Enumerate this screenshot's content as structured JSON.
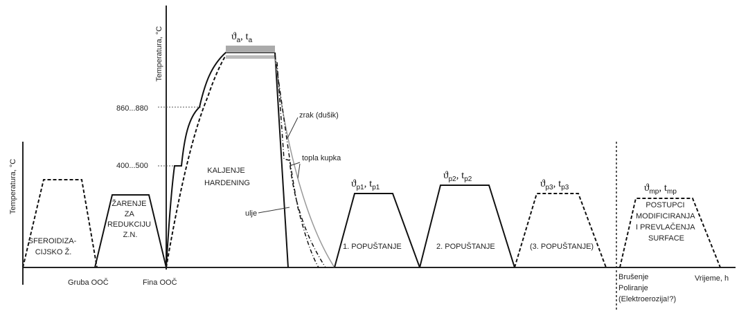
{
  "axes": {
    "left_y_label": "Temperatura, °C",
    "main_y_label": "Temperatura, °C",
    "x_label": "Vrijeme, h"
  },
  "ticks": {
    "t1": "860...880",
    "t2": "400...500"
  },
  "processes": {
    "sferoidizacija": [
      "SFEROIDIZA-",
      "CIJSKO Ž."
    ],
    "zarenje": [
      "ŽARENJE",
      "ZA",
      "REDUKCIJU",
      "Z.N."
    ],
    "kaljenje": [
      "KALJENJE",
      "HARDENING"
    ],
    "popustanje1": "1. POPUŠTANJE",
    "popustanje2": "2. POPUŠTANJE",
    "popustanje3": "(3. POPUŠTANJE)",
    "postupci": [
      "POSTUPCI",
      "MODIFICIRANJA",
      "I PREVLAČENJA",
      "SURFACE"
    ]
  },
  "params": {
    "austenit": {
      "sym": "ϑ",
      "sub": "a",
      "sym2": "t",
      "sub2": "a"
    },
    "p1": {
      "sym": "ϑ",
      "sub": "p1",
      "sym2": "t",
      "sub2": "p1"
    },
    "p2": {
      "sym": "ϑ",
      "sub": "p2",
      "sym2": "t",
      "sub2": "p2"
    },
    "p3": {
      "sym": "ϑ",
      "sub": "p3",
      "sym2": "t",
      "sub2": "p3"
    },
    "mp": {
      "sym": "ϑ",
      "sub": "mp",
      "sym2": "t",
      "sub2": "mp"
    }
  },
  "quench": {
    "zrak": "zrak (dušik)",
    "topla": "topla kupka",
    "ulje": "ulje"
  },
  "machining": {
    "gruba": "Gruba OOČ",
    "fina": "Fina OOČ"
  },
  "finishing": [
    "Brušenje",
    "Poliranje",
    "(Elektroerozija!?)"
  ]
}
